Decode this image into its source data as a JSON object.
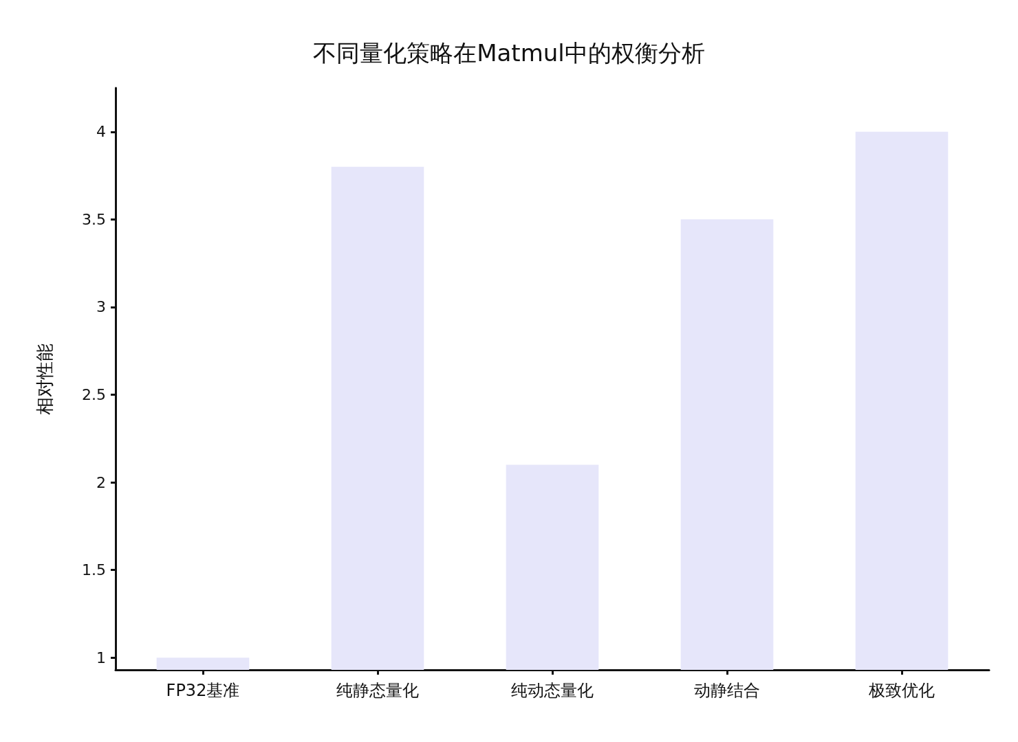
{
  "chart_data": {
    "type": "bar",
    "title": "不同量化策略在Matmul中的权衡分析",
    "ylabel": "相对性能",
    "categories": [
      "FP32基准",
      "纯静态量化",
      "纯动态量化",
      "动静结合",
      "极致优化"
    ],
    "values": [
      1.0,
      3.8,
      2.1,
      3.5,
      4.0
    ],
    "color": "#e6e6fa",
    "ylim": [
      0.93,
      4.25
    ],
    "yticks": [
      1,
      1.5,
      2,
      2.5,
      3,
      3.5,
      4
    ],
    "grid": false
  }
}
